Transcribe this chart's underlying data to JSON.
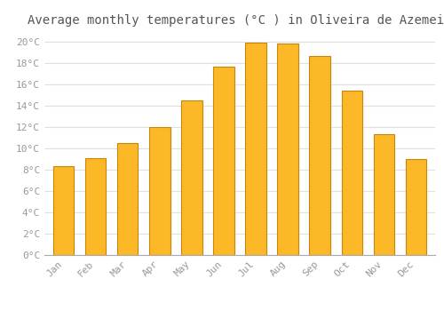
{
  "title": "Average monthly temperatures (°C ) in Oliveira de Azemeis",
  "months": [
    "Jan",
    "Feb",
    "Mar",
    "Apr",
    "May",
    "Jun",
    "Jul",
    "Aug",
    "Sep",
    "Oct",
    "Nov",
    "Dec"
  ],
  "values": [
    8.3,
    9.1,
    10.5,
    12.0,
    14.5,
    17.7,
    19.9,
    19.8,
    18.7,
    15.4,
    11.3,
    9.0
  ],
  "bar_color": "#FDB827",
  "bar_edge_color": "#C8850A",
  "background_color": "#FFFFFF",
  "grid_color": "#E0E0E0",
  "title_fontsize": 10,
  "tick_label_color": "#999999",
  "ylim": [
    0,
    21
  ],
  "yticks": [
    0,
    2,
    4,
    6,
    8,
    10,
    12,
    14,
    16,
    18,
    20
  ]
}
